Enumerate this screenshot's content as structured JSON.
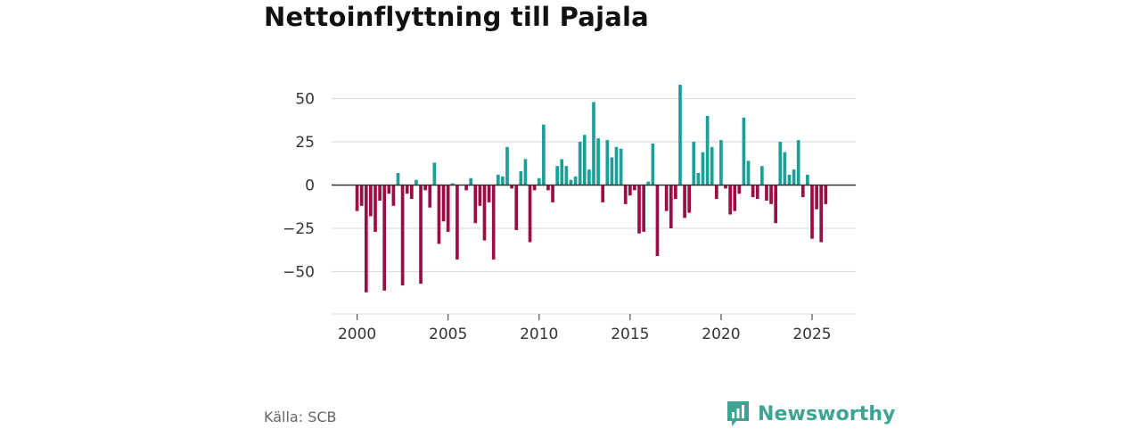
{
  "title": "Nettoinflyttning till Pajala",
  "source": "Källa: SCB",
  "brand": {
    "name": "Newsworthy",
    "color": "#3fa394"
  },
  "colors": {
    "positive": "#1aa098",
    "negative": "#9b0d45",
    "grid": "#dddddd",
    "zero": "#333333"
  },
  "chart_data": {
    "type": "bar",
    "title": "Nettoinflyttning till Pajala",
    "xlabel": "",
    "ylabel": "",
    "x_start": 2000.0,
    "x_step": 0.25,
    "xlim": [
      1998.6,
      2027.4
    ],
    "ylim": [
      -70,
      60
    ],
    "y_ticks": [
      50,
      25,
      0,
      -25,
      -50
    ],
    "y_tick_labels": [
      "50",
      "25",
      "0",
      "−25",
      "−50"
    ],
    "x_ticks": [
      2000,
      2005,
      2010,
      2015,
      2020,
      2025
    ],
    "x_tick_labels": [
      "2000",
      "2005",
      "2010",
      "2015",
      "2020",
      "2025"
    ],
    "values": [
      -15,
      -12,
      -62,
      -18,
      -27,
      -9,
      -61,
      -5,
      -12,
      7,
      -58,
      -5,
      -8,
      3,
      -57,
      -3,
      -13,
      13,
      -34,
      -21,
      -27,
      1,
      -43,
      0,
      -3,
      4,
      -22,
      -12,
      -32,
      -10,
      -43,
      6,
      5,
      22,
      -2,
      -26,
      8,
      15,
      -33,
      -3,
      4,
      35,
      -3,
      -10,
      11,
      15,
      11,
      3,
      5,
      25,
      29,
      9,
      48,
      27,
      -10,
      26,
      16,
      22,
      21,
      -11,
      -6,
      -3,
      -28,
      -27,
      2,
      24,
      -41,
      0,
      -15,
      -25,
      -8,
      58,
      -19,
      -16,
      25,
      7,
      19,
      40,
      22,
      -8,
      26,
      -2,
      -17,
      -15,
      -5,
      39,
      14,
      -7,
      -8,
      11,
      -9,
      -11,
      -22,
      25,
      19,
      6,
      9,
      26,
      -7,
      6,
      -31,
      -14,
      -33,
      -11
    ]
  }
}
